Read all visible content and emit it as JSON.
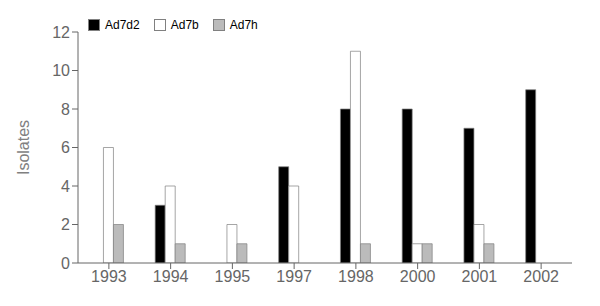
{
  "chart_data": {
    "type": "bar",
    "categories": [
      "1993",
      "1994",
      "1995",
      "1997",
      "1998",
      "2000",
      "2001",
      "2002"
    ],
    "series": [
      {
        "name": "Ad7d2",
        "color": "#000000",
        "values": [
          0,
          3,
          0,
          5,
          8,
          8,
          7,
          9
        ]
      },
      {
        "name": "Ad7b",
        "color": "#ffffff",
        "values": [
          6,
          4,
          2,
          4,
          11,
          1,
          2,
          0
        ]
      },
      {
        "name": "Ad7h",
        "color": "#bbbbbb",
        "values": [
          2,
          1,
          1,
          0,
          1,
          1,
          1,
          0
        ]
      }
    ],
    "ylabel": "Isolates",
    "ylim": [
      0,
      12
    ],
    "yticks": [
      0,
      2,
      4,
      6,
      8,
      10,
      12
    ],
    "grid": false,
    "legend": "upper left"
  }
}
